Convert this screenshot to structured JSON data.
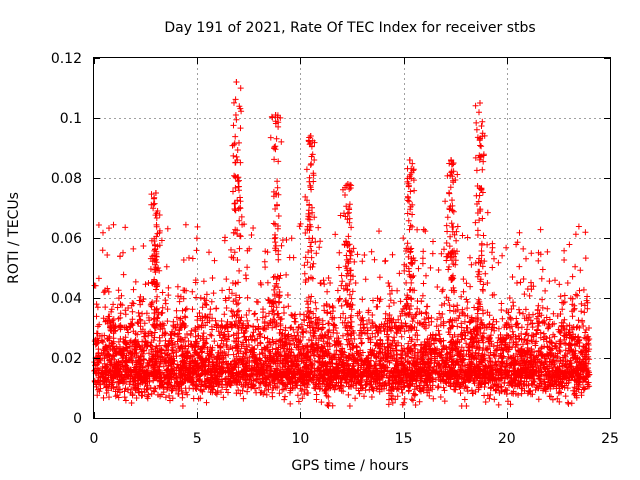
{
  "chart_data": {
    "type": "scatter",
    "title": "Day 191 of 2021, Rate Of TEC Index for receiver stbs",
    "xlabel": "GPS time / hours",
    "ylabel": "ROTI / TECUs",
    "xlim": [
      0,
      25
    ],
    "ylim": [
      0,
      0.12
    ],
    "xticks": [
      0,
      5,
      10,
      15,
      20,
      25
    ],
    "yticks": [
      0,
      0.02,
      0.04,
      0.06,
      0.08,
      0.1,
      0.12
    ],
    "xtick_labels": [
      "0",
      "5",
      "10",
      "15",
      "20",
      "25"
    ],
    "ytick_labels": [
      "0",
      "0.02",
      "0.04",
      "0.06",
      "0.08",
      "0.1",
      "0.12"
    ],
    "grid": true,
    "marker": "+",
    "marker_color": "#ff0000",
    "series": [
      {
        "name": "ROTI",
        "description": "dense scatter of ~6000 points over 0–24 h; bulk between 0.005 and 0.035 TECU/s with sporadic spikes",
        "peaks": [
          {
            "x": 3.0,
            "y": 0.075
          },
          {
            "x": 6.9,
            "y": 0.112
          },
          {
            "x": 8.8,
            "y": 0.101
          },
          {
            "x": 10.5,
            "y": 0.094
          },
          {
            "x": 12.3,
            "y": 0.078
          },
          {
            "x": 15.3,
            "y": 0.086
          },
          {
            "x": 17.3,
            "y": 0.086
          },
          {
            "x": 18.7,
            "y": 0.105
          }
        ]
      }
    ]
  }
}
